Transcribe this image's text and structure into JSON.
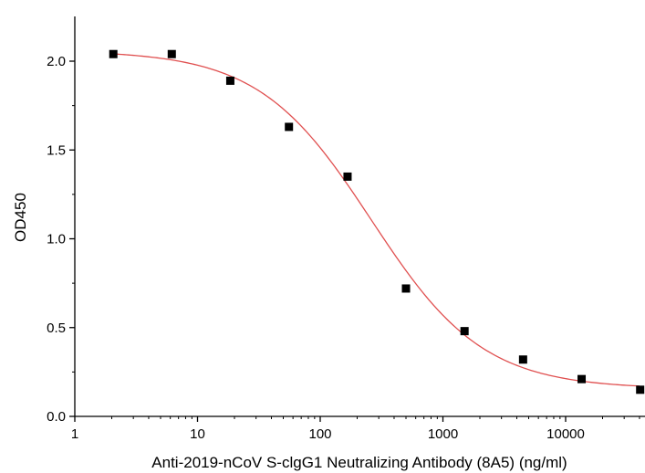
{
  "chart_data": {
    "type": "scatter",
    "title": "",
    "xlabel": "Anti-2019-nCoV S-clgG1 Neutralizing Antibody (8A5) (ng/ml)",
    "ylabel": "OD450",
    "x_scale": "log",
    "xlim": [
      1,
      40000
    ],
    "ylim": [
      0,
      2.2
    ],
    "x_ticks": [
      1,
      10,
      100,
      1000,
      10000
    ],
    "x_tick_labels": [
      "1",
      "10",
      "100",
      "1000",
      "10000"
    ],
    "y_ticks": [
      0,
      0.5,
      1.0,
      1.5,
      2.0
    ],
    "y_tick_labels": [
      "0.0",
      "0.5",
      "1.0",
      "1.5",
      "2.0"
    ],
    "grid": false,
    "series": [
      {
        "type": "scatter",
        "color": "#000000",
        "marker": "square",
        "points": [
          {
            "x": 2.06,
            "y": 2.04
          },
          {
            "x": 6.17,
            "y": 2.04
          },
          {
            "x": 18.5,
            "y": 1.89
          },
          {
            "x": 55.6,
            "y": 1.63
          },
          {
            "x": 167,
            "y": 1.35
          },
          {
            "x": 500,
            "y": 0.72
          },
          {
            "x": 1500,
            "y": 0.48
          },
          {
            "x": 4500,
            "y": 0.32
          },
          {
            "x": 13500,
            "y": 0.21
          },
          {
            "x": 40500,
            "y": 0.15
          }
        ]
      },
      {
        "type": "line",
        "color": "#e05050",
        "curve": "four-parameter-logistic",
        "params": {
          "top": 2.06,
          "bottom": 0.155,
          "ec50": 260,
          "hill": 0.95
        }
      }
    ]
  }
}
